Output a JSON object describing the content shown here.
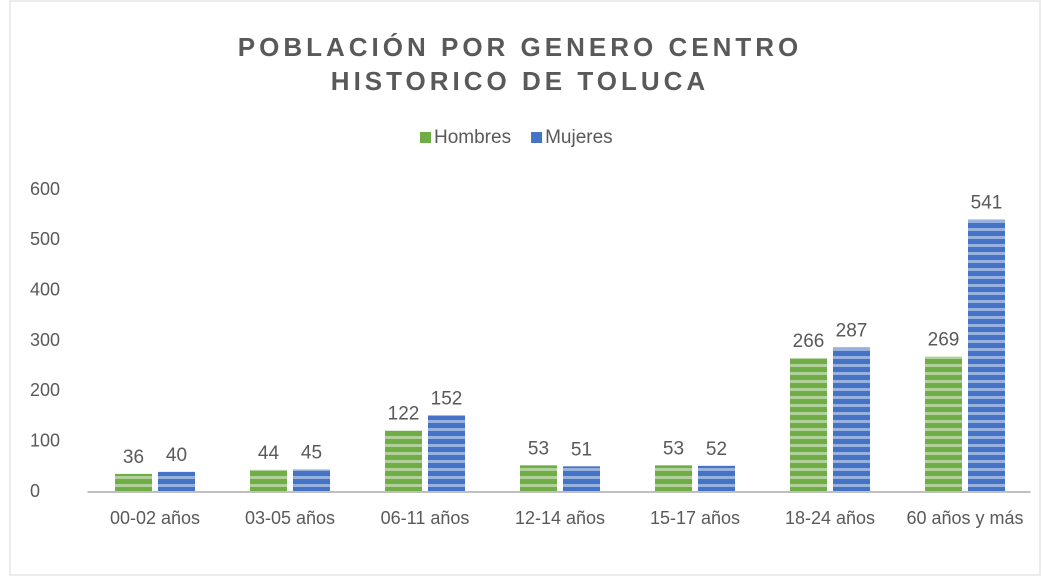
{
  "chart_data": {
    "type": "bar",
    "title": "POBLACIÓN POR GENERO CENTRO HISTORICO DE TOLUCA",
    "categories": [
      "00-02 años",
      "03-05 años",
      "06-11 años",
      "12-14 años",
      "15-17 años",
      "18-24 años",
      "60 años y más"
    ],
    "series": [
      {
        "name": "Hombres",
        "color": "#70ad47",
        "values": [
          36,
          44,
          122,
          53,
          53,
          266,
          269
        ]
      },
      {
        "name": "Mujeres",
        "color": "#4472c4",
        "values": [
          40,
          45,
          152,
          51,
          52,
          287,
          541
        ]
      }
    ],
    "ylim": [
      0,
      600
    ],
    "yticks": [
      0,
      100,
      200,
      300,
      400,
      500,
      600
    ],
    "grid": false,
    "legend": "top"
  }
}
